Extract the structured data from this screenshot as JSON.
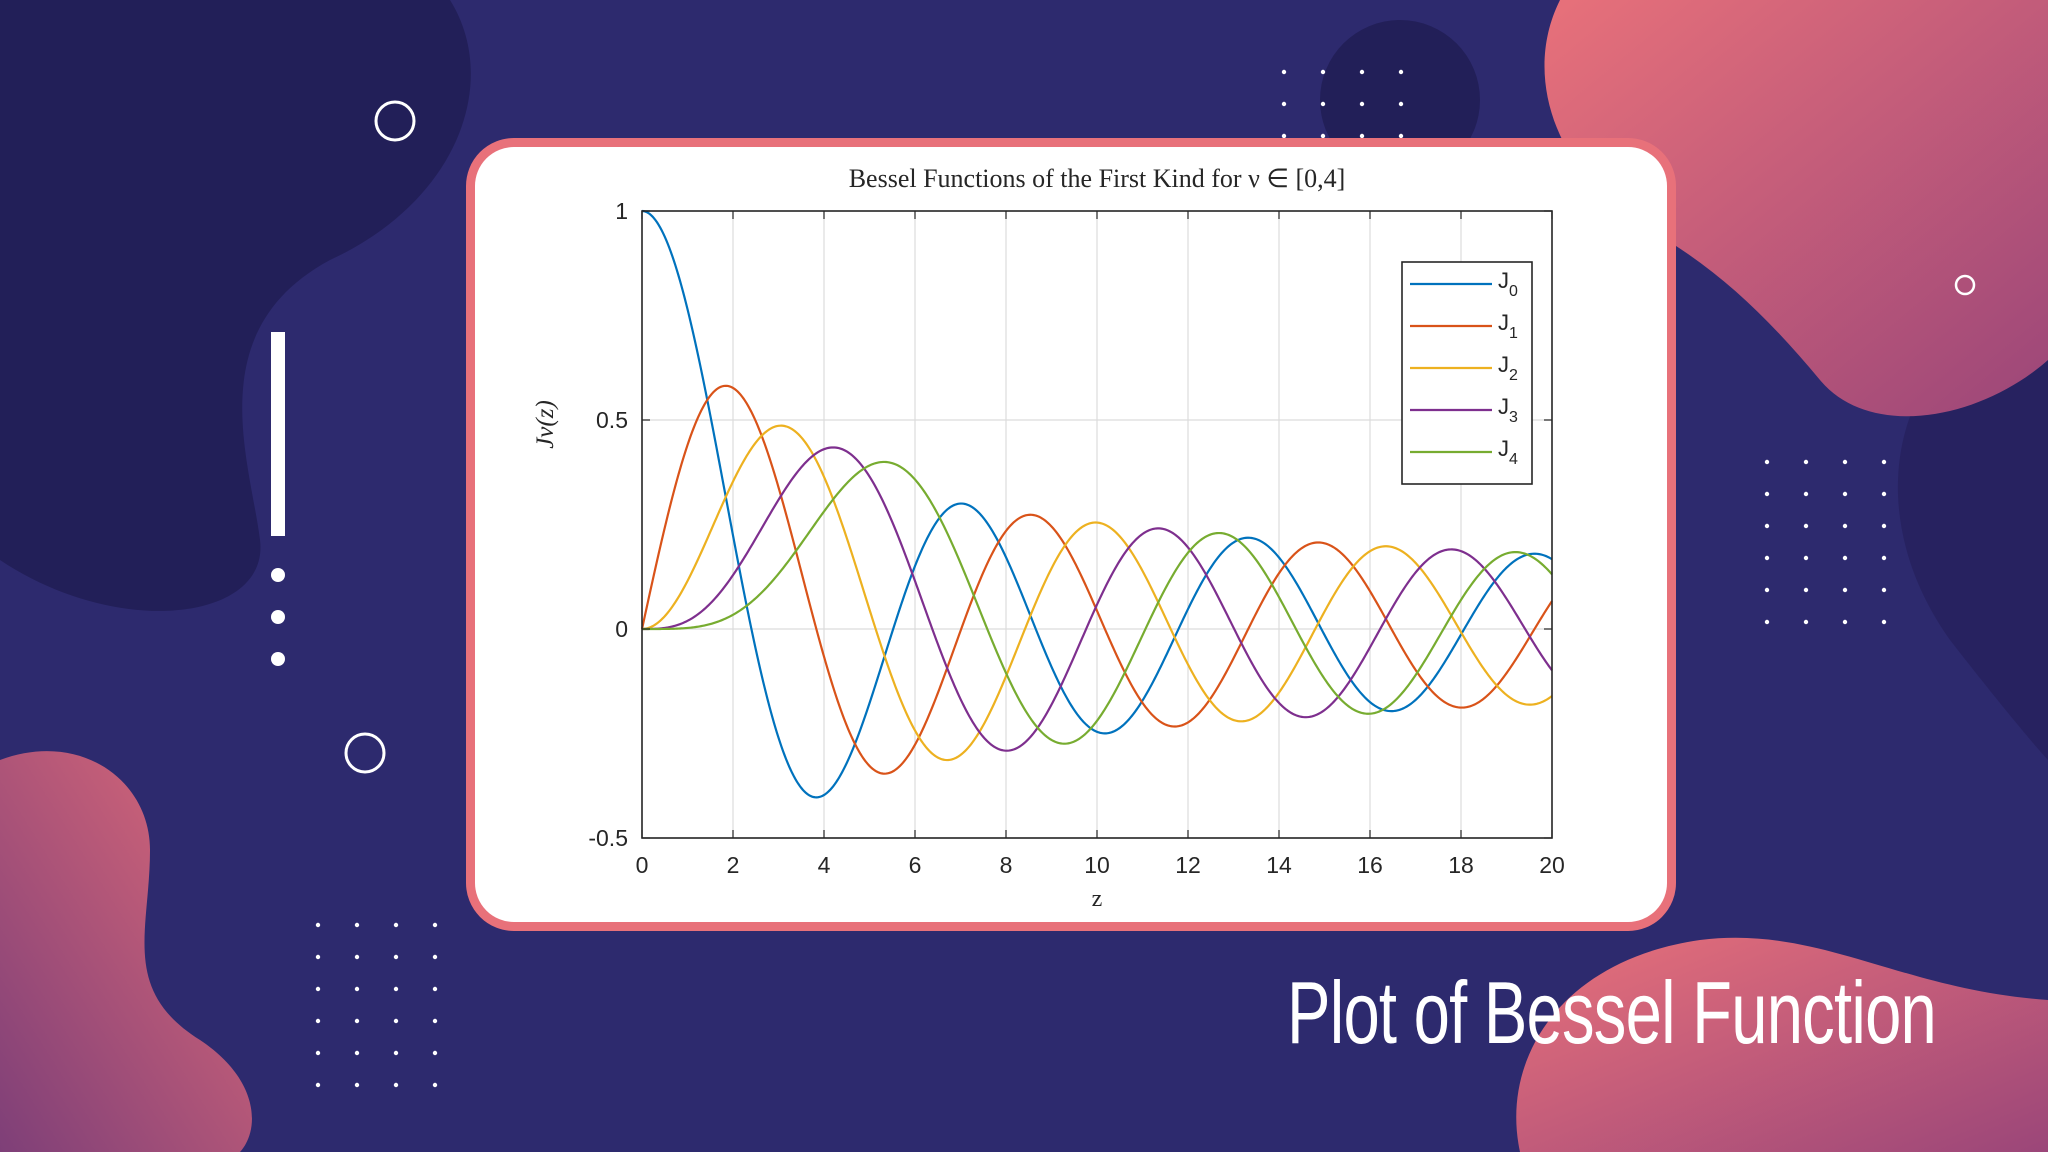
{
  "slide": {
    "title": "Plot of Bessel Function"
  },
  "theme": {
    "background": "#2d2a6e",
    "blob_gradient_start": "#e8717a",
    "blob_gradient_end": "#b04a77",
    "dark_blob": "#221f58",
    "card_border": "#e8717a",
    "decoration": "#ffffff"
  },
  "chart_data": {
    "type": "line",
    "title": "Bessel Functions of the First Kind for ν ∈ [0,4]",
    "xlabel": "z",
    "ylabel": "Jν(z)",
    "xlim": [
      0,
      20
    ],
    "ylim": [
      -0.5,
      1
    ],
    "xticks": [
      "0",
      "2",
      "4",
      "6",
      "8",
      "10",
      "12",
      "14",
      "16",
      "18",
      "20"
    ],
    "yticks": [
      "-0.5",
      "0",
      "0.5",
      "1"
    ],
    "grid": true,
    "legend_position": "top-right",
    "series": [
      {
        "name": "J",
        "subscript": "0",
        "order": 0,
        "color": "#0072bd"
      },
      {
        "name": "J",
        "subscript": "1",
        "order": 1,
        "color": "#d95319"
      },
      {
        "name": "J",
        "subscript": "2",
        "order": 2,
        "color": "#edb120"
      },
      {
        "name": "J",
        "subscript": "3",
        "order": 3,
        "color": "#7e2f8e"
      },
      {
        "name": "J",
        "subscript": "4",
        "order": 4,
        "color": "#77ac30"
      }
    ]
  }
}
